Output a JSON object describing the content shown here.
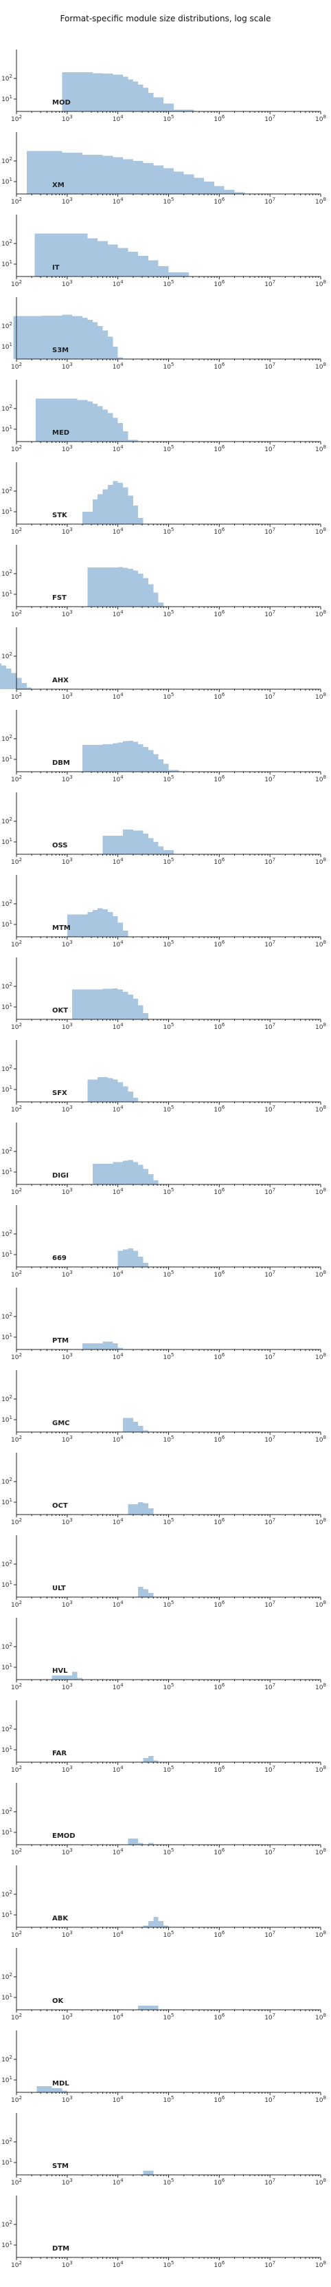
{
  "chart_data": {
    "type": "bar",
    "title": "Format-specific module size distributions, log scale",
    "x_scale": "log",
    "y_scale": "log",
    "xlim": [
      100,
      100000000
    ],
    "ylim": [
      1,
      1000
    ],
    "x_ticks": [
      "10^2",
      "10^3",
      "10^4",
      "10^5",
      "10^6",
      "10^7",
      "10^8"
    ],
    "y_ticks": [
      "10^1",
      "10^2"
    ],
    "bar_color": "#a8c6e0",
    "panels": [
      {
        "name": "MOD",
        "bars": [
          [
            1,
            4,
            200
          ],
          [
            4,
            5,
            180
          ],
          [
            5,
            6,
            170
          ],
          [
            6,
            7,
            150
          ],
          [
            7,
            7.5,
            120
          ],
          [
            7.5,
            8,
            90
          ],
          [
            8,
            8.5,
            70
          ],
          [
            8.5,
            9,
            50
          ],
          [
            9,
            9.5,
            35
          ],
          [
            9.5,
            10,
            20
          ],
          [
            10,
            11,
            12
          ],
          [
            11,
            12,
            6
          ],
          [
            12,
            14,
            3
          ]
        ]
      },
      {
        "name": "XM",
        "bars": [
          [
            0.5,
            4,
            300
          ],
          [
            4,
            6,
            250
          ],
          [
            6,
            8,
            200
          ],
          [
            8,
            9,
            180
          ],
          [
            9,
            10,
            150
          ],
          [
            10,
            11,
            120
          ],
          [
            11,
            12,
            100
          ],
          [
            12,
            13,
            80
          ],
          [
            13,
            14,
            60
          ],
          [
            14,
            15,
            45
          ],
          [
            15,
            16,
            30
          ],
          [
            16,
            17,
            22
          ],
          [
            17,
            18,
            15
          ],
          [
            18,
            19,
            10
          ],
          [
            19,
            20,
            6
          ],
          [
            20,
            21,
            4
          ],
          [
            21,
            22,
            3
          ],
          [
            22,
            24,
            2
          ]
        ]
      },
      {
        "name": "IT",
        "bars": [
          [
            0.8,
            6,
            300
          ],
          [
            6,
            7,
            180
          ],
          [
            7,
            8,
            130
          ],
          [
            8,
            9,
            90
          ],
          [
            9,
            10,
            60
          ],
          [
            10,
            11,
            40
          ],
          [
            11,
            12,
            25
          ],
          [
            12,
            13,
            15
          ],
          [
            13,
            14,
            8
          ],
          [
            14,
            16,
            4
          ],
          [
            16,
            18,
            2
          ]
        ]
      },
      {
        "name": "S3M",
        "bars": [
          [
            0.2,
            3,
            300
          ],
          [
            3,
            5,
            320
          ],
          [
            5,
            6,
            350
          ],
          [
            6,
            7,
            300
          ],
          [
            7,
            7.5,
            250
          ],
          [
            7.5,
            8,
            200
          ],
          [
            8,
            8.5,
            150
          ],
          [
            8.5,
            9,
            100
          ],
          [
            9,
            9.5,
            60
          ],
          [
            9.5,
            10,
            30
          ],
          [
            10,
            10.5,
            10
          ],
          [
            10.5,
            11,
            3
          ]
        ]
      },
      {
        "name": "MED",
        "bars": [
          [
            0.9,
            4,
            300
          ],
          [
            4,
            5,
            310
          ],
          [
            5,
            6,
            260
          ],
          [
            6,
            6.5,
            220
          ],
          [
            6.5,
            7,
            170
          ],
          [
            7,
            7.5,
            130
          ],
          [
            7.5,
            8,
            90
          ],
          [
            8,
            8.5,
            60
          ],
          [
            8.5,
            9,
            35
          ],
          [
            9,
            9.5,
            20
          ],
          [
            9.5,
            10,
            8
          ],
          [
            10,
            11,
            3
          ]
        ]
      },
      {
        "name": "STK",
        "bars": [
          [
            2,
            3,
            10
          ],
          [
            3,
            3.5,
            40
          ],
          [
            3.5,
            4,
            70
          ],
          [
            4,
            4.5,
            120
          ],
          [
            4.5,
            5,
            200
          ],
          [
            5,
            5.5,
            300
          ],
          [
            5.5,
            6,
            250
          ],
          [
            6,
            6.5,
            150
          ],
          [
            6.5,
            7,
            60
          ],
          [
            7,
            7.5,
            20
          ],
          [
            7.5,
            8,
            5
          ]
        ]
      },
      {
        "name": "FST",
        "bars": [
          [
            2,
            5,
            200
          ],
          [
            5,
            5.5,
            210
          ],
          [
            5.5,
            6,
            190
          ],
          [
            6,
            6.5,
            170
          ],
          [
            6.5,
            7,
            140
          ],
          [
            7,
            7.5,
            100
          ],
          [
            7.5,
            8,
            60
          ],
          [
            8,
            8.5,
            30
          ],
          [
            8.5,
            9,
            12
          ],
          [
            9,
            9.5,
            4
          ]
        ]
      },
      {
        "name": "AHX",
        "bars": [
          [
            0,
            1,
            30
          ],
          [
            1,
            1.5,
            45
          ],
          [
            1.5,
            2,
            55
          ],
          [
            2,
            2.5,
            60
          ],
          [
            2.5,
            3,
            45
          ],
          [
            3,
            3.5,
            35
          ],
          [
            3.5,
            4,
            25
          ],
          [
            4,
            4.5,
            15
          ],
          [
            4.5,
            5,
            9
          ],
          [
            5,
            5.5,
            5
          ],
          [
            5.5,
            6,
            3
          ]
        ]
      },
      {
        "name": "DBM",
        "bars": [
          [
            1.5,
            3.5,
            50
          ],
          [
            3.5,
            4.5,
            55
          ],
          [
            4.5,
            5,
            60
          ],
          [
            5,
            5.5,
            65
          ],
          [
            5.5,
            6,
            75
          ],
          [
            6,
            6.5,
            80
          ],
          [
            6.5,
            7,
            70
          ],
          [
            7,
            7.5,
            55
          ],
          [
            7.5,
            8,
            40
          ],
          [
            8,
            8.5,
            28
          ],
          [
            8.5,
            9,
            18
          ],
          [
            9,
            9.5,
            10
          ],
          [
            9.5,
            10,
            6
          ],
          [
            10,
            11,
            3
          ]
        ]
      },
      {
        "name": "OSS",
        "bars": [
          [
            1,
            3,
            20
          ],
          [
            3,
            4,
            40
          ],
          [
            4,
            5,
            35
          ],
          [
            5,
            5.5,
            25
          ],
          [
            5.5,
            6,
            15
          ],
          [
            6,
            6.5,
            10
          ],
          [
            6.5,
            7,
            6
          ],
          [
            7,
            8,
            4
          ],
          [
            8,
            9,
            2
          ]
        ]
      },
      {
        "name": "MTM",
        "bars": [
          [
            1,
            3,
            30
          ],
          [
            3,
            3.5,
            40
          ],
          [
            3.5,
            4,
            50
          ],
          [
            4,
            4.5,
            60
          ],
          [
            4.5,
            5,
            55
          ],
          [
            5,
            5.5,
            40
          ],
          [
            5.5,
            6,
            25
          ],
          [
            6,
            6.5,
            12
          ],
          [
            6.5,
            7,
            5
          ]
        ]
      },
      {
        "name": "OKT",
        "bars": [
          [
            1,
            4,
            70
          ],
          [
            4,
            5,
            75
          ],
          [
            5,
            5.5,
            80
          ],
          [
            5.5,
            6,
            70
          ],
          [
            6,
            6.5,
            55
          ],
          [
            6.5,
            7,
            40
          ],
          [
            7,
            7.5,
            25
          ],
          [
            7.5,
            8,
            12
          ],
          [
            8,
            8.5,
            5
          ]
        ]
      },
      {
        "name": "SFX",
        "bars": [
          [
            1,
            2,
            30
          ],
          [
            2,
            3,
            40
          ],
          [
            3,
            3.5,
            35
          ],
          [
            3.5,
            4,
            30
          ],
          [
            4,
            4.5,
            22
          ],
          [
            4.5,
            5,
            14
          ],
          [
            5,
            5.5,
            8
          ],
          [
            5.5,
            6,
            4
          ]
        ]
      },
      {
        "name": "DIGI",
        "bars": [
          [
            1,
            3,
            25
          ],
          [
            3,
            4,
            30
          ],
          [
            4,
            4.5,
            35
          ],
          [
            4.5,
            5,
            38
          ],
          [
            5,
            5.5,
            30
          ],
          [
            5.5,
            6,
            22
          ],
          [
            6,
            6.5,
            14
          ],
          [
            6.5,
            7,
            8
          ],
          [
            7,
            7.5,
            4
          ]
        ]
      },
      {
        "name": "669",
        "bars": [
          [
            1,
            1.5,
            15
          ],
          [
            1.5,
            2,
            18
          ],
          [
            2,
            2.5,
            20
          ],
          [
            2.5,
            3,
            15
          ],
          [
            3,
            3.5,
            8
          ],
          [
            3.5,
            4,
            4
          ]
        ]
      },
      {
        "name": "PTM",
        "bars": [
          [
            1,
            3,
            5
          ],
          [
            3,
            4,
            6
          ],
          [
            4,
            4.5,
            5
          ],
          [
            4.5,
            5,
            3
          ]
        ]
      },
      {
        "name": "GMC",
        "bars": [
          [
            1,
            2,
            12
          ],
          [
            2,
            2.5,
            8
          ],
          [
            2.5,
            3,
            5
          ],
          [
            3,
            3.5,
            3
          ],
          [
            3.5,
            4,
            2
          ]
        ]
      },
      {
        "name": "OCT",
        "bars": [
          [
            1,
            2,
            8
          ],
          [
            2,
            2.5,
            10
          ],
          [
            2.5,
            3,
            9
          ],
          [
            3,
            3.5,
            5
          ],
          [
            3.5,
            4,
            2
          ]
        ]
      },
      {
        "name": "ULT",
        "bars": [
          [
            1,
            1.5,
            8
          ],
          [
            1.5,
            2,
            6
          ],
          [
            2,
            2.5,
            4
          ],
          [
            2.5,
            3,
            2
          ]
        ]
      },
      {
        "name": "HVL",
        "bars": [
          [
            1,
            3,
            4
          ],
          [
            3,
            3.5,
            6
          ],
          [
            3.5,
            4,
            3
          ]
        ]
      },
      {
        "name": "FAR",
        "bars": [
          [
            1,
            1.5,
            4
          ],
          [
            1.5,
            2,
            5
          ],
          [
            2,
            2.5,
            3
          ],
          [
            2.5,
            3,
            2
          ]
        ]
      },
      {
        "name": "EMOD",
        "bars": [
          [
            1,
            2,
            5
          ],
          [
            2,
            2.5,
            3
          ],
          [
            2.5,
            3,
            2
          ],
          [
            3,
            3.5,
            3
          ],
          [
            3.5,
            4,
            2
          ]
        ]
      },
      {
        "name": "ABK",
        "bars": [
          [
            1,
            2,
            2
          ],
          [
            2,
            2.5,
            3
          ],
          [
            2.5,
            3,
            5
          ],
          [
            3,
            3.5,
            8
          ],
          [
            3.5,
            4,
            5
          ],
          [
            4,
            4.5,
            3
          ],
          [
            4.5,
            5,
            2
          ]
        ]
      },
      {
        "name": "OK",
        "bars": [
          [
            1,
            3,
            4
          ],
          [
            3,
            3.5,
            2
          ]
        ]
      },
      {
        "name": "MDL",
        "bars": [
          [
            0.5,
            2,
            5
          ],
          [
            2,
            3,
            4
          ],
          [
            3,
            3.5,
            3
          ],
          [
            3.5,
            4,
            2
          ]
        ]
      },
      {
        "name": "STM",
        "bars": [
          [
            1,
            2,
            4
          ],
          [
            2,
            3,
            2
          ],
          [
            3,
            3.5,
            2
          ]
        ]
      },
      {
        "name": "DTM",
        "bars": [
          [
            1,
            3,
            2
          ]
        ]
      }
    ]
  }
}
